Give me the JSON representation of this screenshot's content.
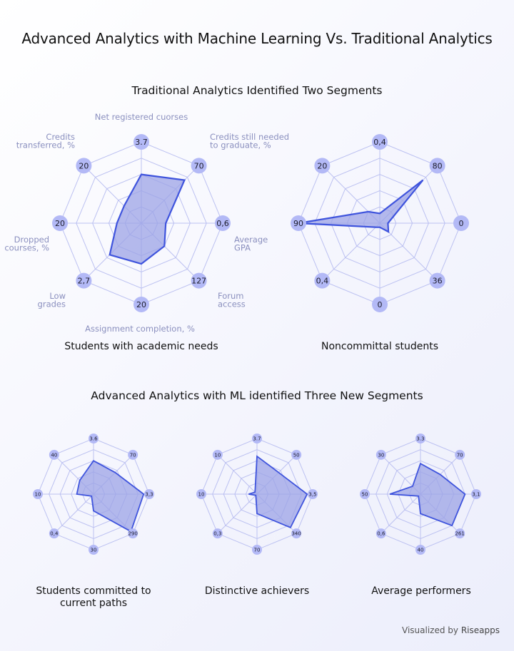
{
  "title": "Advanced Analytics with Machine Learning Vs. Traditional Analytics",
  "section1_title": "Traditional Analytics Identified Two Segments",
  "section2_title": "Advanced Analytics with ML identified Three New Segments",
  "footer": {
    "prefix": "Visualized by",
    "brand": "Riseapps"
  },
  "colors": {
    "stroke": "#3f54dd",
    "fill": "#9ca3e6",
    "grid": "#bcc1f1",
    "badge": "#b3b9f6",
    "axis_label": "#8b90bf"
  },
  "chart_data": [
    {
      "type": "radar",
      "title": "Students with academic needs",
      "axes": [
        "Net registered cuorses",
        "Credits still needed to graduate, %",
        "Average GPA",
        "Forum access",
        "Assignment completion, %",
        "Low grades",
        "Dropped courses, %",
        "Credits transferred, %"
      ],
      "max_labels": [
        "3.7",
        "70",
        "0,6",
        "127",
        "20",
        "2,7",
        "20",
        "20"
      ],
      "values": [
        0.6,
        0.75,
        0.3,
        0.4,
        0.5,
        0.55,
        0.3,
        0.3
      ]
    },
    {
      "type": "radar",
      "title": "Noncommittal students",
      "max_labels": [
        "0,4",
        "80",
        "0",
        "36",
        "0",
        "0,4",
        "90",
        "20"
      ],
      "values": [
        0.12,
        0.75,
        0.1,
        0.15,
        0.05,
        0.07,
        1.0,
        0.2
      ]
    },
    {
      "type": "radar",
      "title": "Students committed to current paths",
      "max_labels": [
        "3.6",
        "70",
        "3,3",
        "290",
        "30",
        "0,4",
        "10",
        "40"
      ],
      "values": [
        0.6,
        0.55,
        0.9,
        0.95,
        0.3,
        0.05,
        0.3,
        0.35
      ]
    },
    {
      "type": "radar",
      "title": "Distinctive achievers",
      "max_labels": [
        "3.7",
        "50",
        "3,5",
        "340",
        "70",
        "0,3",
        "10",
        "10"
      ],
      "values": [
        0.68,
        0.55,
        0.9,
        0.85,
        0.35,
        0.03,
        0.15,
        0.05
      ]
    },
    {
      "type": "radar",
      "title": "Average performers",
      "max_labels": [
        "3.3",
        "70",
        "3,1",
        "261",
        "40",
        "0,6",
        "50",
        "30"
      ],
      "values": [
        0.55,
        0.5,
        0.8,
        0.8,
        0.35,
        0.05,
        0.55,
        0.2
      ]
    }
  ]
}
